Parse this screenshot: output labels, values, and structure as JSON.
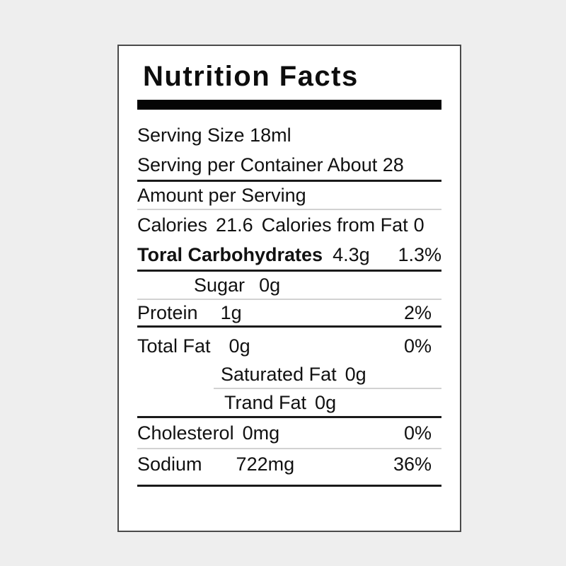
{
  "colors": {
    "page_background": "#eeeeee",
    "panel_background": "#ffffff",
    "ink": "#111111",
    "rule_dark": "#1a1a1a",
    "rule_light": "#d2d2d2"
  },
  "label": {
    "title": "Nutrition Facts",
    "serving": {
      "size": "Serving Size 18ml",
      "per_container": "Serving per Container About 28"
    },
    "amount_per_serving": "Amount per Serving",
    "calories": {
      "label": "Calories",
      "value": "21.6",
      "from_fat_label": "Calories from Fat",
      "from_fat_value": "0"
    },
    "total_carbohydrates": {
      "label": "Toral Carbohydrates",
      "value": "4.3g",
      "daily_value": "1.3%"
    },
    "sugar": {
      "label": "Sugar",
      "value": "0g"
    },
    "protein": {
      "label": "Protein",
      "value": "1g",
      "daily_value": "2%"
    },
    "total_fat": {
      "label": "Total Fat",
      "value": "0g",
      "daily_value": "0%"
    },
    "saturated_fat": {
      "label": "Saturated Fat",
      "value": "0g"
    },
    "trans_fat": {
      "label": "Trand Fat",
      "value": "0g"
    },
    "cholesterol": {
      "label": "Cholesterol",
      "value": "0mg",
      "daily_value": "0%"
    },
    "sodium": {
      "label": "Sodium",
      "value": "722mg",
      "daily_value": "36%"
    }
  }
}
